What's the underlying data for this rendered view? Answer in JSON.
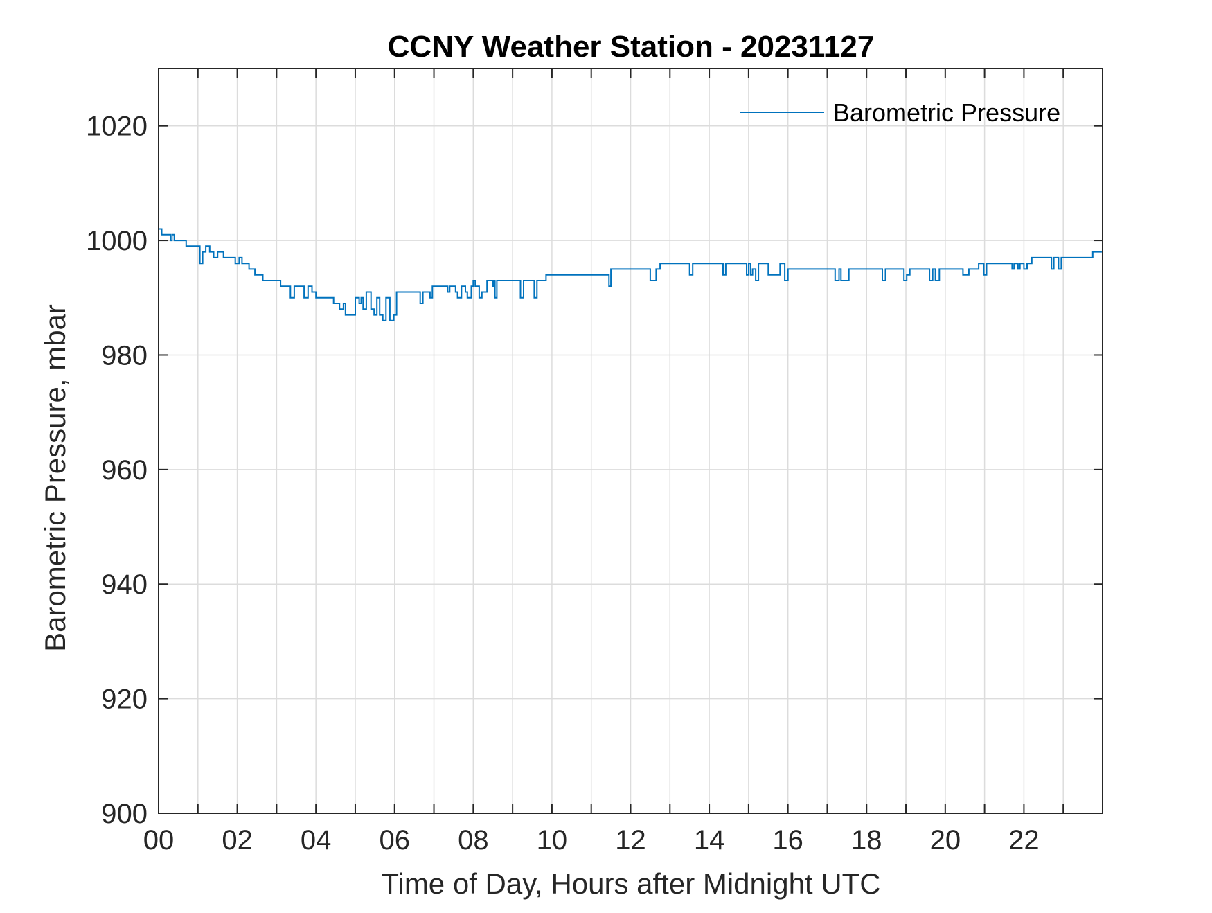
{
  "colors": {
    "series": "#0072bd",
    "axis": "#262626",
    "grid": "#dcdcdc",
    "background": "#ffffff"
  },
  "chart_data": {
    "type": "line",
    "title": "CCNY Weather Station - 20231127",
    "xlabel": "Time of Day, Hours after Midnight UTC",
    "ylabel": "Barometric Pressure, mbar",
    "xlim": [
      0,
      24
    ],
    "ylim": [
      900,
      1030
    ],
    "grid": true,
    "legend_position": "top-right",
    "x_ticks": [
      0,
      2,
      4,
      6,
      8,
      10,
      12,
      14,
      16,
      18,
      20,
      22
    ],
    "x_tick_labels": [
      "00",
      "02",
      "04",
      "06",
      "08",
      "10",
      "12",
      "14",
      "16",
      "18",
      "20",
      "22"
    ],
    "x_minor_grid": [
      1,
      3,
      5,
      7,
      9,
      11,
      13,
      15,
      17,
      19,
      21,
      23
    ],
    "y_ticks": [
      900,
      920,
      940,
      960,
      980,
      1000,
      1020
    ],
    "y_tick_labels": [
      "900",
      "920",
      "940",
      "960",
      "980",
      "1000",
      "1020"
    ],
    "series": [
      {
        "name": "Barometric Pressure",
        "color": "#0072bd",
        "step": true,
        "points": [
          [
            0.0,
            1002
          ],
          [
            0.08,
            1001
          ],
          [
            0.3,
            1000
          ],
          [
            0.34,
            1001
          ],
          [
            0.4,
            1000
          ],
          [
            0.7,
            999
          ],
          [
            1.05,
            996
          ],
          [
            1.12,
            998
          ],
          [
            1.2,
            999
          ],
          [
            1.3,
            998
          ],
          [
            1.4,
            997
          ],
          [
            1.5,
            998
          ],
          [
            1.65,
            997
          ],
          [
            1.95,
            996
          ],
          [
            2.05,
            997
          ],
          [
            2.12,
            996
          ],
          [
            2.3,
            995
          ],
          [
            2.45,
            994
          ],
          [
            2.65,
            993
          ],
          [
            3.1,
            992
          ],
          [
            3.35,
            990
          ],
          [
            3.45,
            992
          ],
          [
            3.7,
            990
          ],
          [
            3.8,
            992
          ],
          [
            3.9,
            991
          ],
          [
            4.0,
            990
          ],
          [
            4.45,
            989
          ],
          [
            4.6,
            988
          ],
          [
            4.7,
            989
          ],
          [
            4.75,
            987
          ],
          [
            5.0,
            990
          ],
          [
            5.1,
            989
          ],
          [
            5.15,
            990
          ],
          [
            5.2,
            988
          ],
          [
            5.28,
            991
          ],
          [
            5.4,
            988
          ],
          [
            5.48,
            987
          ],
          [
            5.55,
            990
          ],
          [
            5.62,
            987
          ],
          [
            5.7,
            986
          ],
          [
            5.78,
            990
          ],
          [
            5.88,
            986
          ],
          [
            5.98,
            987
          ],
          [
            6.05,
            991
          ],
          [
            6.65,
            989
          ],
          [
            6.72,
            991
          ],
          [
            6.9,
            990
          ],
          [
            6.96,
            992
          ],
          [
            7.35,
            991
          ],
          [
            7.4,
            992
          ],
          [
            7.55,
            991
          ],
          [
            7.6,
            990
          ],
          [
            7.7,
            992
          ],
          [
            7.8,
            991
          ],
          [
            7.85,
            990
          ],
          [
            7.95,
            992
          ],
          [
            8.0,
            993
          ],
          [
            8.05,
            992
          ],
          [
            8.15,
            990
          ],
          [
            8.22,
            991
          ],
          [
            8.35,
            993
          ],
          [
            8.5,
            992
          ],
          [
            8.52,
            993
          ],
          [
            8.55,
            990
          ],
          [
            8.6,
            993
          ],
          [
            9.2,
            990
          ],
          [
            9.28,
            993
          ],
          [
            9.55,
            990
          ],
          [
            9.62,
            993
          ],
          [
            9.85,
            994
          ],
          [
            11.45,
            992
          ],
          [
            11.5,
            995
          ],
          [
            12.5,
            993
          ],
          [
            12.65,
            995
          ],
          [
            12.75,
            996
          ],
          [
            13.5,
            994
          ],
          [
            13.58,
            996
          ],
          [
            14.35,
            994
          ],
          [
            14.42,
            996
          ],
          [
            14.95,
            994
          ],
          [
            15.0,
            996
          ],
          [
            15.05,
            994
          ],
          [
            15.1,
            995
          ],
          [
            15.18,
            993
          ],
          [
            15.25,
            996
          ],
          [
            15.5,
            994
          ],
          [
            15.8,
            996
          ],
          [
            15.92,
            993
          ],
          [
            16.0,
            995
          ],
          [
            17.2,
            993
          ],
          [
            17.3,
            995
          ],
          [
            17.35,
            993
          ],
          [
            17.55,
            995
          ],
          [
            18.4,
            993
          ],
          [
            18.48,
            995
          ],
          [
            18.95,
            993
          ],
          [
            19.02,
            994
          ],
          [
            19.1,
            995
          ],
          [
            19.6,
            993
          ],
          [
            19.68,
            995
          ],
          [
            19.75,
            993
          ],
          [
            19.85,
            995
          ],
          [
            20.45,
            994
          ],
          [
            20.6,
            995
          ],
          [
            20.85,
            996
          ],
          [
            20.98,
            994
          ],
          [
            21.05,
            996
          ],
          [
            21.7,
            995
          ],
          [
            21.75,
            996
          ],
          [
            21.85,
            995
          ],
          [
            21.9,
            996
          ],
          [
            22.0,
            995
          ],
          [
            22.08,
            996
          ],
          [
            22.2,
            997
          ],
          [
            22.7,
            995
          ],
          [
            22.76,
            997
          ],
          [
            22.88,
            995
          ],
          [
            22.95,
            997
          ],
          [
            23.75,
            998
          ],
          [
            23.98,
            998
          ]
        ]
      }
    ]
  }
}
